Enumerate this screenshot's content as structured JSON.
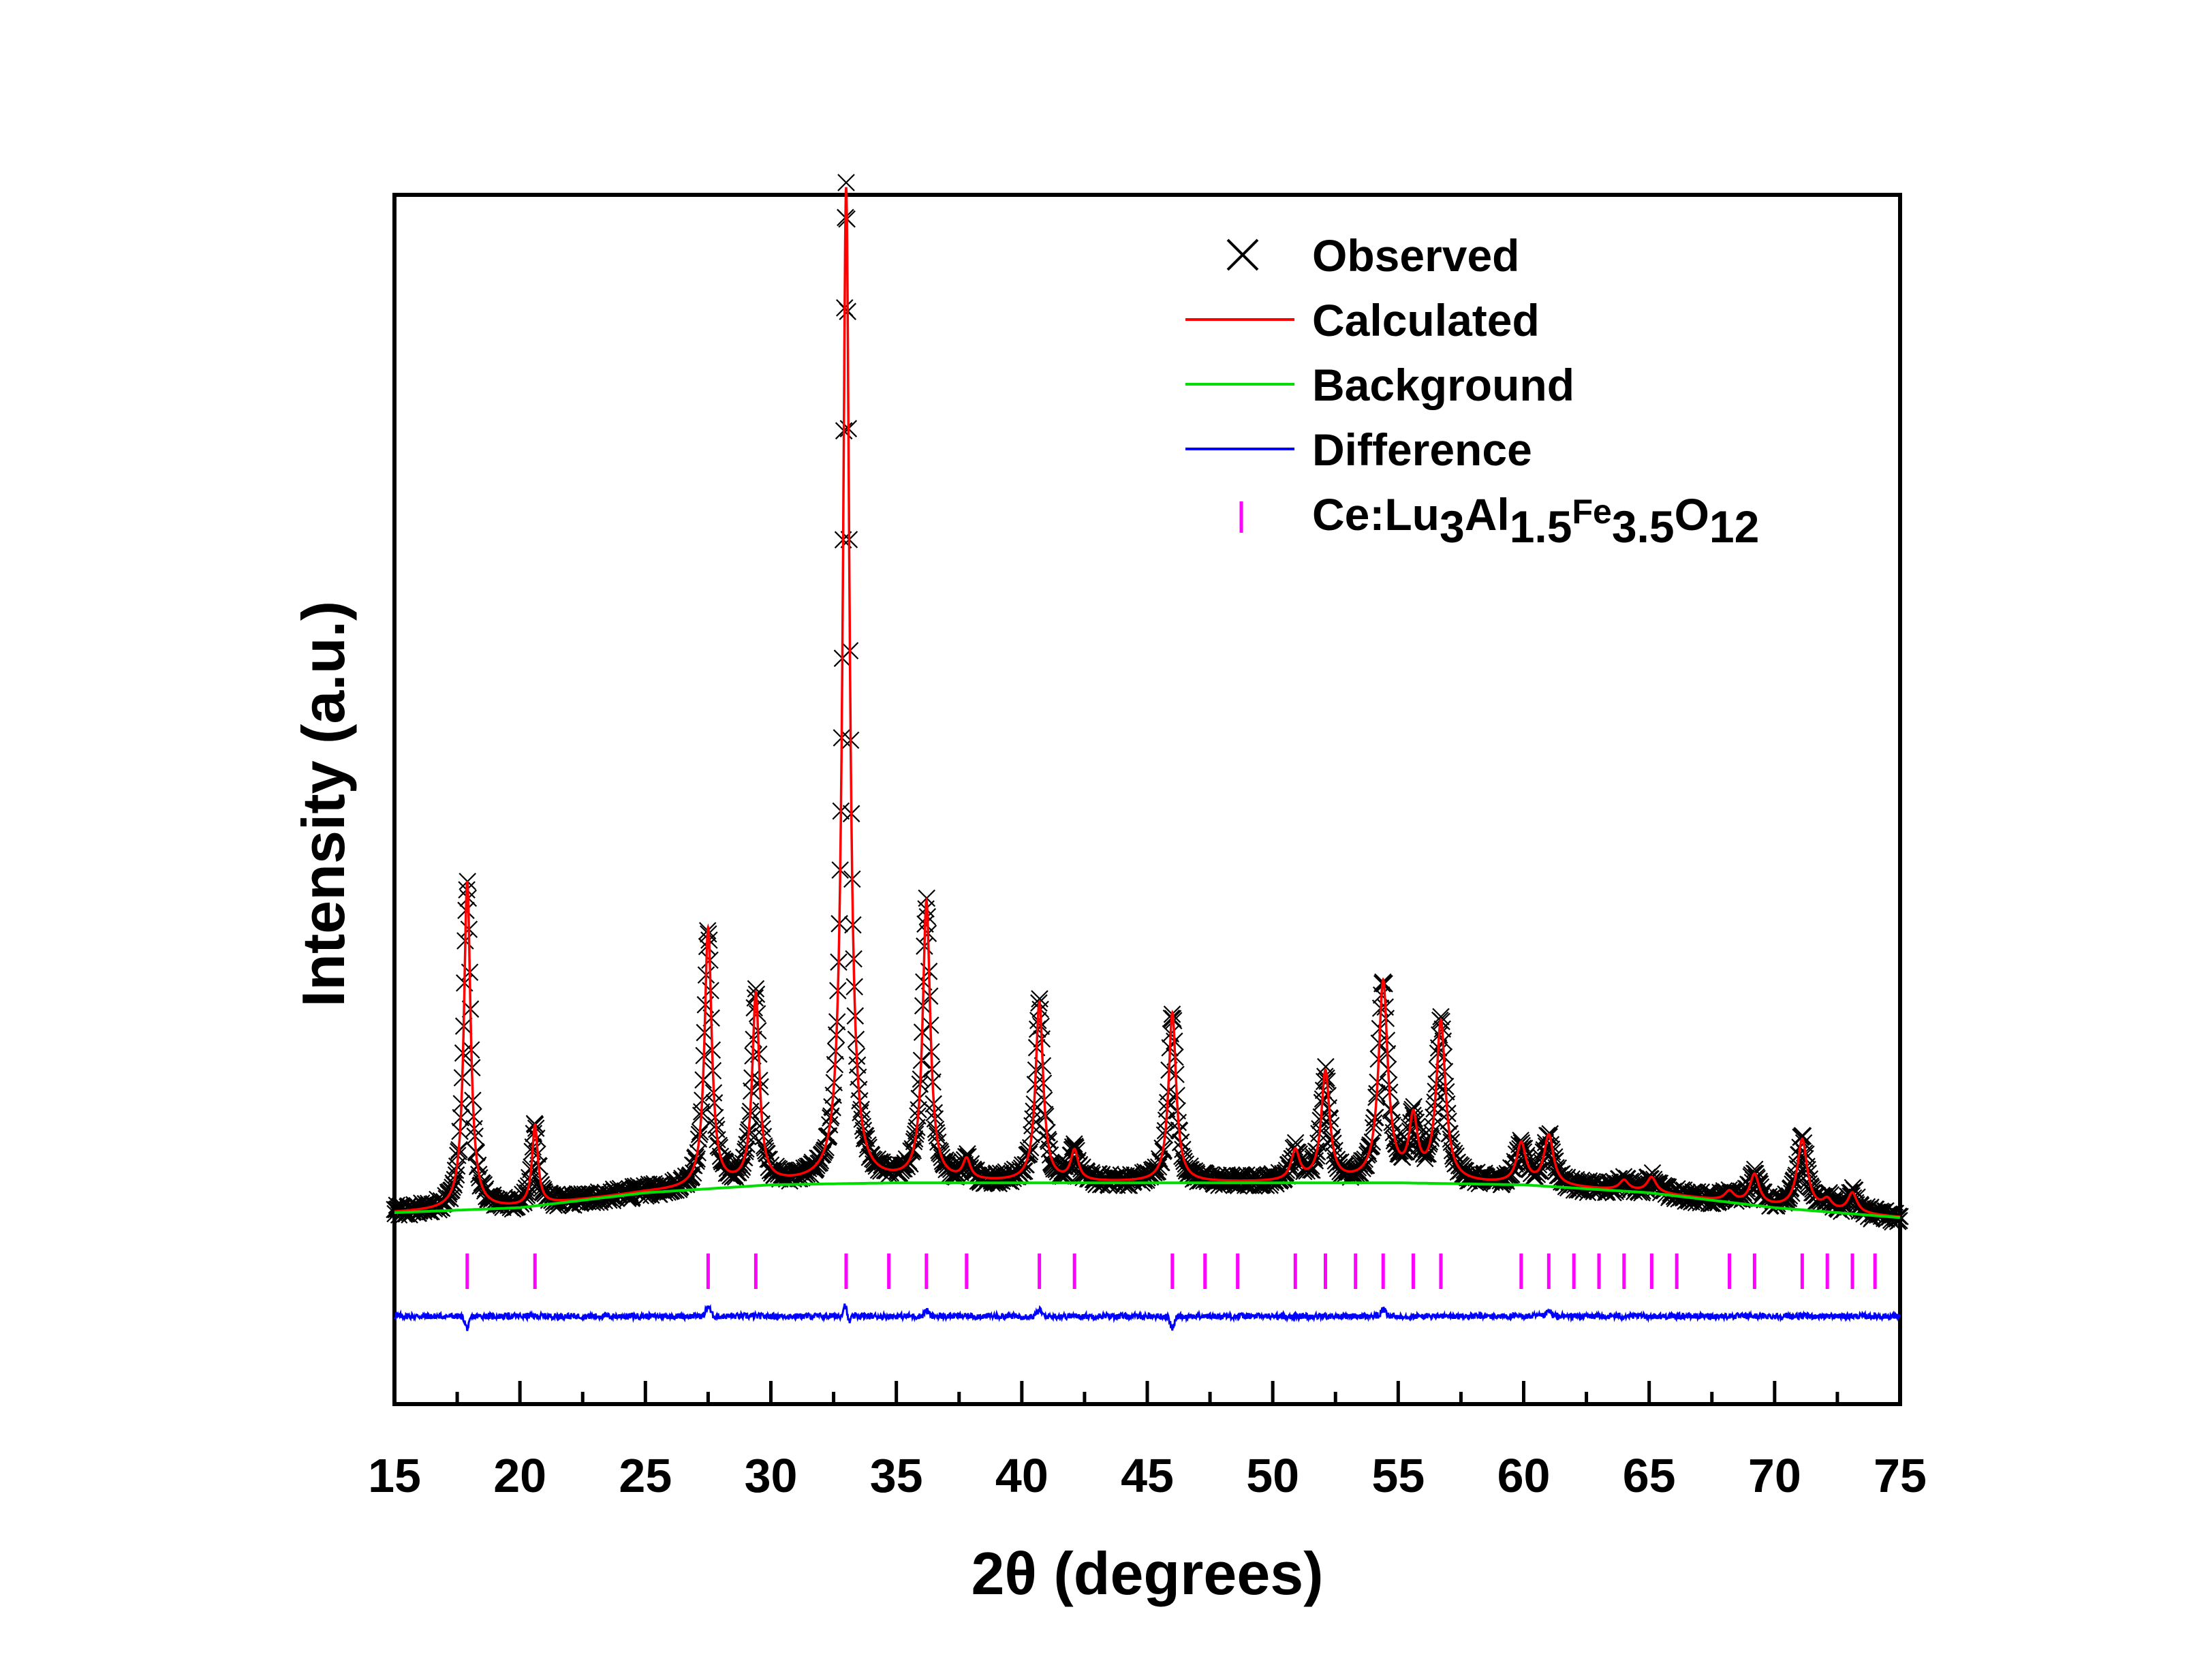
{
  "chart_data": {
    "type": "line",
    "title": "",
    "xlabel": "2θ (degrees)",
    "ylabel": "Intensity (a.u.)",
    "xlim": [
      15,
      75
    ],
    "ylim_note": "arbitrary units, no tick labels",
    "x_ticks": [
      15,
      20,
      25,
      30,
      35,
      40,
      45,
      50,
      55,
      60,
      65,
      70,
      75
    ],
    "x_tick_labels": [
      "15",
      "20",
      "25",
      "30",
      "35",
      "40",
      "45",
      "50",
      "55",
      "60",
      "65",
      "70",
      "75"
    ],
    "grid": false,
    "legend_position": "top-right",
    "legend": {
      "observed": "Observed",
      "calculated": "Calculated",
      "background": "Background",
      "difference": "Difference",
      "phase_prefix": "Ce:Lu",
      "phase_sub1": "3",
      "phase_al": "Al",
      "phase_sub2": "1.5",
      "phase_fe": "Fe",
      "phase_sub3": "3.5",
      "phase_o": "O",
      "phase_sub4": "12"
    },
    "colors": {
      "observed": "#000000",
      "calculated": "#ff0000",
      "background": "#00dd00",
      "difference": "#0000ff",
      "bragg": "#ff00ff"
    },
    "peaks": [
      {
        "pos": 17.9,
        "height": 0.33,
        "width": 0.16
      },
      {
        "pos": 20.6,
        "height": 0.08,
        "width": 0.14
      },
      {
        "pos": 27.5,
        "height": 0.26,
        "width": 0.17
      },
      {
        "pos": 29.4,
        "height": 0.19,
        "width": 0.17
      },
      {
        "pos": 33.0,
        "height": 1.0,
        "width": 0.16
      },
      {
        "pos": 36.2,
        "height": 0.28,
        "width": 0.18
      },
      {
        "pos": 37.8,
        "height": 0.02,
        "width": 0.18
      },
      {
        "pos": 40.7,
        "height": 0.18,
        "width": 0.18
      },
      {
        "pos": 42.1,
        "height": 0.03,
        "width": 0.18
      },
      {
        "pos": 46.0,
        "height": 0.17,
        "width": 0.18
      },
      {
        "pos": 50.9,
        "height": 0.03,
        "width": 0.2
      },
      {
        "pos": 52.1,
        "height": 0.11,
        "width": 0.2
      },
      {
        "pos": 54.4,
        "height": 0.2,
        "width": 0.22
      },
      {
        "pos": 55.6,
        "height": 0.06,
        "width": 0.2
      },
      {
        "pos": 56.7,
        "height": 0.16,
        "width": 0.22
      },
      {
        "pos": 59.9,
        "height": 0.04,
        "width": 0.22
      },
      {
        "pos": 61.0,
        "height": 0.05,
        "width": 0.22
      },
      {
        "pos": 64.0,
        "height": 0.01,
        "width": 0.22
      },
      {
        "pos": 65.1,
        "height": 0.015,
        "width": 0.22
      },
      {
        "pos": 68.2,
        "height": 0.01,
        "width": 0.22
      },
      {
        "pos": 69.2,
        "height": 0.03,
        "width": 0.22
      },
      {
        "pos": 71.1,
        "height": 0.07,
        "width": 0.24
      },
      {
        "pos": 72.1,
        "height": 0.01,
        "width": 0.22
      },
      {
        "pos": 73.1,
        "height": 0.02,
        "width": 0.22
      }
    ],
    "background_points": [
      [
        15,
        0.0
      ],
      [
        20,
        0.005
      ],
      [
        25,
        0.02
      ],
      [
        30,
        0.028
      ],
      [
        35,
        0.03
      ],
      [
        40,
        0.03
      ],
      [
        45,
        0.03
      ],
      [
        50,
        0.03
      ],
      [
        55,
        0.03
      ],
      [
        60,
        0.028
      ],
      [
        65,
        0.02
      ],
      [
        70,
        0.005
      ],
      [
        75,
        -0.005
      ]
    ],
    "bragg_positions": [
      17.9,
      20.6,
      27.5,
      29.4,
      33.0,
      34.7,
      36.2,
      37.8,
      40.7,
      42.1,
      46.0,
      47.3,
      48.6,
      50.9,
      52.1,
      53.3,
      54.4,
      55.6,
      56.7,
      59.9,
      61.0,
      62.0,
      63.0,
      64.0,
      65.1,
      66.1,
      68.2,
      69.2,
      71.1,
      72.1,
      73.1,
      74.0
    ],
    "difference_features": [
      {
        "pos": 17.9,
        "amp": -0.012
      },
      {
        "pos": 27.5,
        "amp": 0.01
      },
      {
        "pos": 33.0,
        "amp": 0.025
      },
      {
        "pos": 33.05,
        "amp": -0.02
      },
      {
        "pos": 36.2,
        "amp": 0.006
      },
      {
        "pos": 40.7,
        "amp": 0.006
      },
      {
        "pos": 46.0,
        "amp": -0.012
      },
      {
        "pos": 54.4,
        "amp": 0.007
      },
      {
        "pos": 61.0,
        "amp": 0.005
      }
    ]
  }
}
